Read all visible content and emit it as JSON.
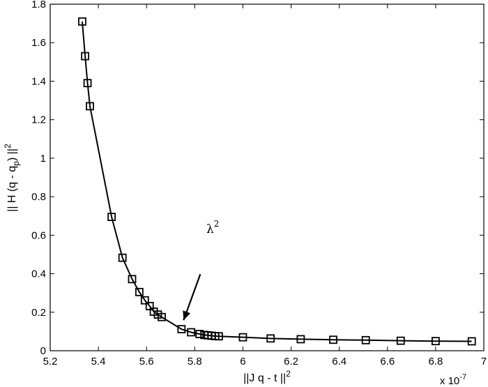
{
  "chart_data": {
    "type": "line",
    "title": "",
    "xlabel": "||J q - t ||",
    "xlabel_sup": "2",
    "ylabel": "|| H (q - q",
    "ylabel_sub": "p",
    "ylabel_tail": ") ||",
    "ylabel_sup": "2",
    "x_multiplier": "x 10",
    "x_multiplier_exp": "-7",
    "xlim": [
      5.2,
      7
    ],
    "ylim": [
      0,
      1.8
    ],
    "xticks": [
      5.2,
      5.4,
      5.6,
      5.8,
      6,
      6.2,
      6.4,
      6.6,
      6.8,
      7
    ],
    "yticks": [
      0,
      0.2,
      0.4,
      0.6,
      0.8,
      1,
      1.2,
      1.4,
      1.6,
      1.8
    ],
    "xtick_labels": [
      "5.2",
      "5.4",
      "5.6",
      "5.8",
      "6",
      "6.2",
      "6.4",
      "6.6",
      "6.8",
      "7"
    ],
    "ytick_labels": [
      "0",
      "0.2",
      "0.4",
      "0.6",
      "0.8",
      "1",
      "1.2",
      "1.4",
      "1.6",
      "1.8"
    ],
    "grid": false,
    "marker": "square",
    "line_color": "#000000",
    "annotation": {
      "text": "λ",
      "sup": "2",
      "points_to": [
        5.745,
        0.115
      ]
    },
    "series": [
      {
        "x": [
          5.333,
          5.345,
          5.355,
          5.365,
          5.455,
          5.5,
          5.54,
          5.57,
          5.593,
          5.613,
          5.63,
          5.647,
          5.663,
          5.745,
          5.785,
          5.82,
          5.84,
          5.855,
          5.87,
          5.885,
          5.9,
          6.0,
          6.115,
          6.24,
          6.375,
          6.51,
          6.655,
          6.8,
          6.95
        ],
        "y": [
          1.71,
          1.53,
          1.39,
          1.27,
          0.695,
          0.483,
          0.372,
          0.305,
          0.262,
          0.232,
          0.203,
          0.188,
          0.175,
          0.112,
          0.096,
          0.087,
          0.082,
          0.08,
          0.078,
          0.076,
          0.075,
          0.07,
          0.064,
          0.06,
          0.057,
          0.055,
          0.052,
          0.05,
          0.049
        ]
      }
    ]
  }
}
